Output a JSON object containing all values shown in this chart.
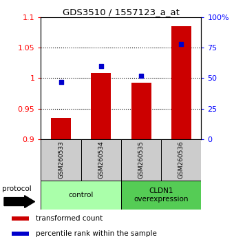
{
  "title": "GDS3510 / 1557123_a_at",
  "samples": [
    "GSM260533",
    "GSM260534",
    "GSM260535",
    "GSM260536"
  ],
  "bar_values": [
    0.935,
    1.008,
    0.992,
    1.085
  ],
  "percentile_values": [
    47,
    60,
    52,
    78
  ],
  "bar_color": "#cc0000",
  "percentile_color": "#0000cc",
  "ylim_left": [
    0.9,
    1.1
  ],
  "ylim_right": [
    0,
    100
  ],
  "yticks_left": [
    0.9,
    0.95,
    1.0,
    1.05,
    1.1
  ],
  "yticks_right": [
    0,
    25,
    50,
    75,
    100
  ],
  "ytick_labels_left": [
    "0.9",
    "0.95",
    "1",
    "1.05",
    "1.1"
  ],
  "ytick_labels_right": [
    "0",
    "25",
    "50",
    "75",
    "100%"
  ],
  "groups": [
    {
      "label": "control",
      "samples": [
        0,
        1
      ],
      "color": "#aaffaa"
    },
    {
      "label": "CLDN1\noverexpression",
      "samples": [
        2,
        3
      ],
      "color": "#55cc55"
    }
  ],
  "legend_items": [
    {
      "label": "transformed count",
      "color": "#cc0000"
    },
    {
      "label": "percentile rank within the sample",
      "color": "#0000cc"
    }
  ],
  "protocol_label": "protocol",
  "bar_width": 0.5,
  "background_color": "#ffffff",
  "sample_box_color": "#cccccc"
}
